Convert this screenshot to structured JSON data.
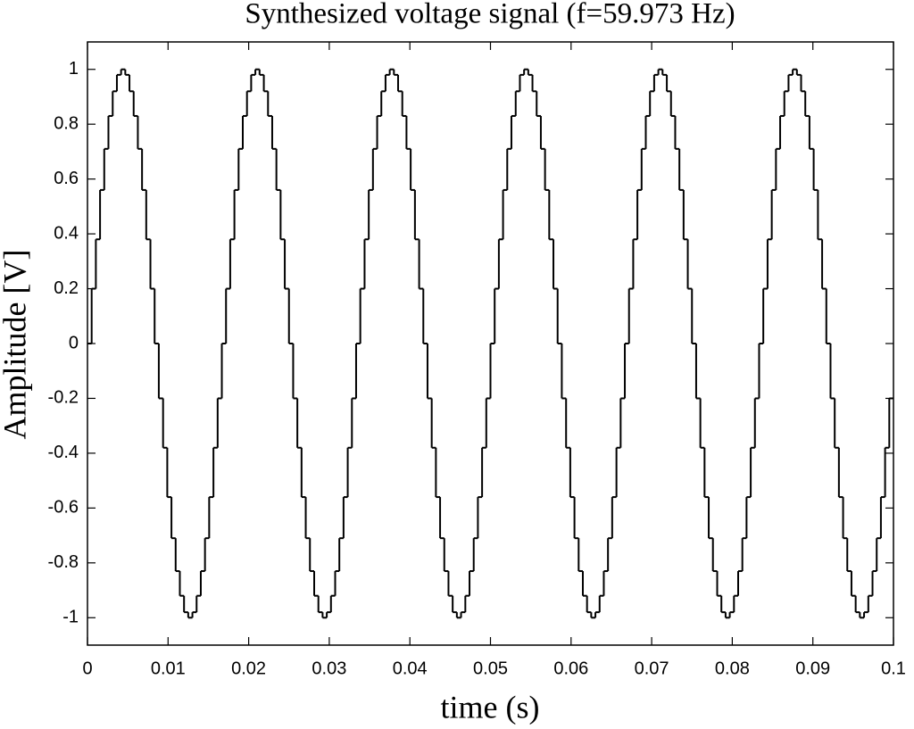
{
  "chart_data": {
    "type": "step",
    "title": "Synthesized voltage signal (f=59.973 Hz)",
    "xlabel": "time (s)",
    "ylabel": "Amplitude [V]",
    "color": "#000000",
    "xlim": [
      0,
      0.1
    ],
    "ylim": [
      -1.1,
      1.1
    ],
    "xticks": [
      0,
      0.01,
      0.02,
      0.03,
      0.04,
      0.05,
      0.06,
      0.07,
      0.08,
      0.09,
      0.1
    ],
    "yticks": [
      -1,
      -0.8,
      -0.6,
      -0.4,
      -0.2,
      0,
      0.2,
      0.4,
      0.6,
      0.8,
      1
    ],
    "x": [
      0,
      0.00052,
      0.00104,
      0.00156,
      0.00208,
      0.0026,
      0.00313,
      0.00365,
      0.00417,
      0.00469,
      0.00521,
      0.00573,
      0.00625,
      0.00677,
      0.00729,
      0.00781,
      0.00833,
      0.00885,
      0.00938,
      0.0099,
      0.01042,
      0.01094,
      0.01146,
      0.01198,
      0.0125,
      0.01302,
      0.01354,
      0.01406,
      0.01458,
      0.0151,
      0.01563,
      0.01615,
      0.01667,
      0.01719,
      0.01771,
      0.01823,
      0.01875,
      0.01927,
      0.01979,
      0.02031,
      0.02083,
      0.02135,
      0.02188,
      0.0224,
      0.02292,
      0.02344,
      0.02396,
      0.02448,
      0.025,
      0.02552,
      0.02604,
      0.02656,
      0.02708,
      0.0276,
      0.02813,
      0.02865,
      0.02917,
      0.02969,
      0.03021,
      0.03073,
      0.03125,
      0.03177,
      0.03229,
      0.03281,
      0.03333,
      0.03385,
      0.03438,
      0.0349,
      0.03542,
      0.03594,
      0.03646,
      0.03698,
      0.0375,
      0.03802,
      0.03854,
      0.03906,
      0.03958,
      0.0401,
      0.04063,
      0.04115,
      0.04167,
      0.04219,
      0.04271,
      0.04323,
      0.04375,
      0.04427,
      0.04479,
      0.04531,
      0.04583,
      0.04635,
      0.04688,
      0.0474,
      0.04792,
      0.04844,
      0.04896,
      0.04948,
      0.05,
      0.05052,
      0.05104,
      0.05156,
      0.05208,
      0.0526,
      0.05313,
      0.05365,
      0.05417,
      0.05469,
      0.05521,
      0.05573,
      0.05625,
      0.05677,
      0.05729,
      0.05781,
      0.05833,
      0.05885,
      0.05938,
      0.0599,
      0.06042,
      0.06094,
      0.06146,
      0.06198,
      0.0625,
      0.06302,
      0.06354,
      0.06406,
      0.06458,
      0.0651,
      0.06563,
      0.06615,
      0.06667,
      0.06719,
      0.06771,
      0.06823,
      0.06875,
      0.06927,
      0.06979,
      0.07031,
      0.07083,
      0.07135,
      0.07188,
      0.0724,
      0.07292,
      0.07344,
      0.07396,
      0.07448,
      0.075,
      0.07552,
      0.07604,
      0.07656,
      0.07708,
      0.0776,
      0.07813,
      0.07865,
      0.07917,
      0.07969,
      0.08021,
      0.08073,
      0.08125,
      0.08177,
      0.08229,
      0.08281,
      0.08333,
      0.08385,
      0.08438,
      0.0849,
      0.08542,
      0.08594,
      0.08646,
      0.08698,
      0.0875,
      0.08802,
      0.08854,
      0.08906,
      0.08958,
      0.0901,
      0.09063,
      0.09115,
      0.09167,
      0.09219,
      0.09271,
      0.09323,
      0.09375,
      0.09427,
      0.09479,
      0.09531,
      0.09583,
      0.09635,
      0.09688,
      0.0974,
      0.09792,
      0.09844,
      0.09896,
      0.09948
    ],
    "values": [
      0,
      0.2,
      0.38,
      0.56,
      0.71,
      0.83,
      0.92,
      0.98,
      1,
      0.98,
      0.92,
      0.83,
      0.71,
      0.56,
      0.38,
      0.2,
      0,
      -0.2,
      -0.38,
      -0.56,
      -0.71,
      -0.83,
      -0.92,
      -0.98,
      -1,
      -0.98,
      -0.92,
      -0.83,
      -0.71,
      -0.56,
      -0.38,
      -0.2,
      0,
      0.2,
      0.38,
      0.56,
      0.71,
      0.83,
      0.92,
      0.98,
      1,
      0.98,
      0.92,
      0.83,
      0.71,
      0.56,
      0.38,
      0.2,
      0,
      -0.2,
      -0.38,
      -0.56,
      -0.71,
      -0.83,
      -0.92,
      -0.98,
      -1,
      -0.98,
      -0.92,
      -0.83,
      -0.71,
      -0.56,
      -0.38,
      -0.2,
      0,
      0.2,
      0.38,
      0.56,
      0.71,
      0.83,
      0.92,
      0.98,
      1,
      0.98,
      0.92,
      0.83,
      0.71,
      0.56,
      0.38,
      0.2,
      0,
      -0.2,
      -0.38,
      -0.56,
      -0.71,
      -0.83,
      -0.92,
      -0.98,
      -1,
      -0.98,
      -0.92,
      -0.83,
      -0.71,
      -0.56,
      -0.38,
      -0.2,
      0,
      0.2,
      0.38,
      0.56,
      0.71,
      0.83,
      0.92,
      0.98,
      1,
      0.98,
      0.92,
      0.83,
      0.71,
      0.56,
      0.38,
      0.2,
      0,
      -0.2,
      -0.38,
      -0.56,
      -0.71,
      -0.83,
      -0.92,
      -0.98,
      -1,
      -0.98,
      -0.92,
      -0.83,
      -0.71,
      -0.56,
      -0.38,
      -0.2,
      0,
      0.2,
      0.38,
      0.56,
      0.71,
      0.83,
      0.92,
      0.98,
      1,
      0.98,
      0.92,
      0.83,
      0.71,
      0.56,
      0.38,
      0.2,
      0,
      -0.2,
      -0.38,
      -0.56,
      -0.71,
      -0.83,
      -0.92,
      -0.98,
      -1,
      -0.98,
      -0.92,
      -0.83,
      -0.71,
      -0.56,
      -0.38,
      -0.2,
      0,
      0.2,
      0.38,
      0.56,
      0.71,
      0.83,
      0.92,
      0.98,
      1,
      0.98,
      0.92,
      0.83,
      0.71,
      0.56,
      0.38,
      0.2,
      0,
      -0.2,
      -0.38,
      -0.56,
      -0.71,
      -0.83,
      -0.92,
      -0.98,
      -1,
      -0.98,
      -0.92,
      -0.83,
      -0.71,
      -0.56,
      -0.38,
      -0.2
    ]
  }
}
